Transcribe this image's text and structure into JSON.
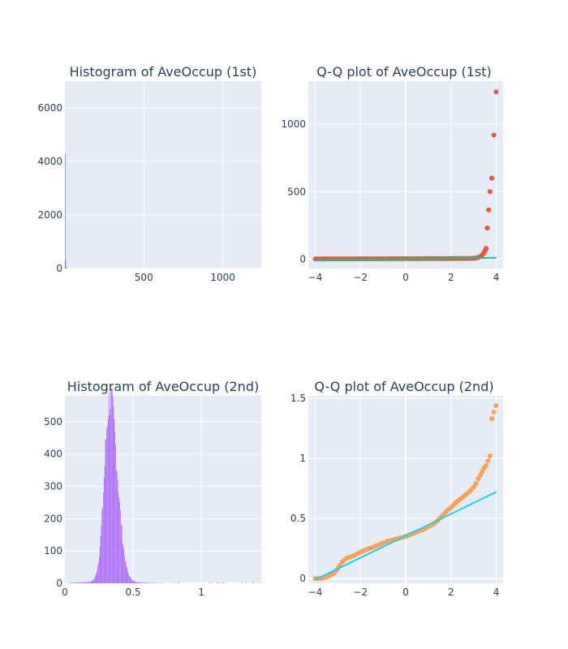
{
  "colors": {
    "plot_bg": "#E5ECF6",
    "grid": "#ffffff",
    "text": "#2a3f5f",
    "hist1_bar": "#636efa",
    "qq1_points": "#EF553B",
    "qq1_line": "#00cc96",
    "hist2_bar": "#ab63fa",
    "qq2_points": "#FFA15A",
    "qq2_line": "#19d3f3"
  },
  "chart_data": [
    {
      "id": "hist1",
      "type": "bar",
      "title": "Histogram of AveOccup (1st)",
      "xlabel": "",
      "ylabel": "",
      "xlim": [
        0.7,
        1243
      ],
      "ylim": [
        0,
        7000
      ],
      "x_ticks": [
        500,
        1000
      ],
      "y_ticks": [
        0,
        2000,
        4000,
        6000
      ],
      "grid": true,
      "bars": [
        {
          "x0": 0.7,
          "x1": 3.5,
          "count": 4300
        },
        {
          "x0": 3.5,
          "x1": 6.5,
          "count": 300
        },
        {
          "x0": 6.5,
          "x1": 10,
          "count": 40
        }
      ]
    },
    {
      "id": "qq1",
      "type": "scatter",
      "title": "Q-Q plot of AveOccup (1st)",
      "xlabel": "",
      "ylabel": "",
      "xlim": [
        -4.3,
        4.3
      ],
      "ylim": [
        -70,
        1320
      ],
      "x_ticks": [
        -4,
        -2,
        0,
        2,
        4
      ],
      "y_ticks": [
        0,
        500,
        1000
      ],
      "grid": true,
      "points": [
        [
          -3.99,
          0.69
        ],
        [
          -3.8,
          1.0
        ],
        [
          -3.6,
          1.1
        ],
        [
          -3.3,
          1.2
        ],
        [
          -3.0,
          1.4
        ],
        [
          -2.6,
          1.6
        ],
        [
          -2.2,
          1.8
        ],
        [
          -1.8,
          2.0
        ],
        [
          -1.4,
          2.2
        ],
        [
          -1.0,
          2.4
        ],
        [
          -0.6,
          2.6
        ],
        [
          -0.2,
          2.8
        ],
        [
          0.2,
          3.0
        ],
        [
          0.6,
          3.2
        ],
        [
          1.0,
          3.4
        ],
        [
          1.4,
          3.6
        ],
        [
          1.8,
          3.9
        ],
        [
          2.2,
          4.2
        ],
        [
          2.6,
          4.6
        ],
        [
          2.8,
          5.0
        ],
        [
          3.0,
          6.0
        ],
        [
          3.1,
          8.0
        ],
        [
          3.2,
          12
        ],
        [
          3.3,
          18
        ],
        [
          3.35,
          25
        ],
        [
          3.42,
          40
        ],
        [
          3.5,
          60
        ],
        [
          3.55,
          80
        ],
        [
          3.6,
          230
        ],
        [
          3.72,
          500
        ],
        [
          3.8,
          600
        ],
        [
          3.99,
          1240
        ]
      ],
      "fit_line": [
        [
          -4,
          -10
        ],
        [
          4,
          10
        ]
      ]
    },
    {
      "id": "hist2",
      "type": "bar",
      "title": "Histogram of AveOccup (2nd)",
      "xlabel": "",
      "ylabel": "",
      "xlim": [
        0,
        1.44
      ],
      "ylim": [
        0,
        580
      ],
      "x_ticks": [
        0,
        0.5,
        1
      ],
      "y_ticks": [
        0,
        100,
        200,
        300,
        400,
        500
      ],
      "grid": true,
      "distribution": {
        "center": 0.33,
        "sigma_left": 0.04,
        "sigma_right": 0.055,
        "peak": 560,
        "bin_width": 0.005,
        "tail_start": 0.7,
        "tail_end": 1.45
      }
    },
    {
      "id": "qq2",
      "type": "scatter",
      "title": "Q-Q plot of AveOccup (2nd)",
      "xlabel": "",
      "ylabel": "",
      "xlim": [
        -4.3,
        4.3
      ],
      "ylim": [
        -0.04,
        1.52
      ],
      "x_ticks": [
        -4,
        -2,
        0,
        2,
        4
      ],
      "y_ticks": [
        0,
        0.5,
        1,
        1.5
      ],
      "y_tick_labels": [
        "0",
        "0.5",
        "1",
        "1.5"
      ],
      "grid": true,
      "points": [
        [
          -3.99,
          0.0
        ],
        [
          -3.8,
          0.0
        ],
        [
          -3.6,
          0.005
        ],
        [
          -3.4,
          0.02
        ],
        [
          -3.2,
          0.04
        ],
        [
          -3.05,
          0.07
        ],
        [
          -2.9,
          0.11
        ],
        [
          -2.8,
          0.14
        ],
        [
          -2.6,
          0.17
        ],
        [
          -2.3,
          0.19
        ],
        [
          -2.0,
          0.22
        ],
        [
          -1.6,
          0.25
        ],
        [
          -1.2,
          0.28
        ],
        [
          -0.8,
          0.31
        ],
        [
          -0.4,
          0.33
        ],
        [
          0.0,
          0.35
        ],
        [
          0.4,
          0.38
        ],
        [
          0.8,
          0.41
        ],
        [
          1.2,
          0.45
        ],
        [
          1.4,
          0.48
        ],
        [
          1.6,
          0.52
        ],
        [
          1.8,
          0.56
        ],
        [
          2.0,
          0.59
        ],
        [
          2.2,
          0.63
        ],
        [
          2.4,
          0.66
        ],
        [
          2.6,
          0.69
        ],
        [
          2.8,
          0.72
        ],
        [
          3.0,
          0.76
        ],
        [
          3.1,
          0.79
        ],
        [
          3.2,
          0.83
        ],
        [
          3.3,
          0.86
        ],
        [
          3.45,
          0.92
        ],
        [
          3.55,
          0.94
        ],
        [
          3.72,
          1.02
        ],
        [
          3.8,
          1.33
        ],
        [
          3.99,
          1.44
        ]
      ],
      "fit_line": [
        [
          -4,
          -0.01
        ],
        [
          4,
          0.72
        ]
      ]
    }
  ]
}
